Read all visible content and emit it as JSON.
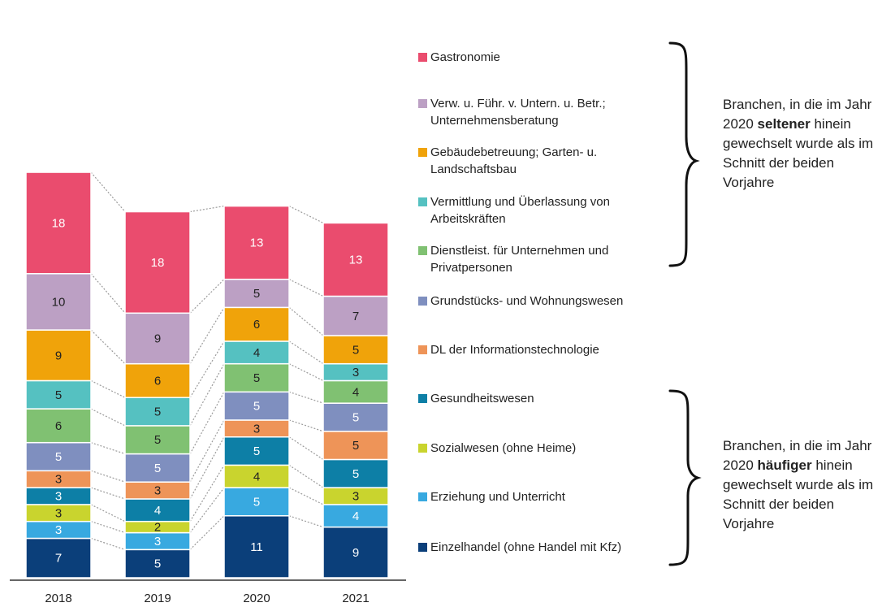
{
  "chart_data": {
    "type": "stacked-bar",
    "categories": [
      "2018",
      "2019",
      "2020",
      "2021"
    ],
    "ylim": [
      0,
      100
    ],
    "grid": false,
    "legend_position": "right",
    "series": [
      {
        "name": "Einzelhandel (ohne Handel mit Kfz)",
        "color": "#0b3f7a",
        "values": [
          7,
          5,
          11,
          9
        ]
      },
      {
        "name": "Erziehung und Unterricht",
        "color": "#38a9e0",
        "values": [
          3,
          3,
          5,
          4
        ]
      },
      {
        "name": "Sozialwesen (ohne Heime)",
        "color": "#c9d42e",
        "values": [
          3,
          2,
          4,
          3
        ]
      },
      {
        "name": "Gesundheitswesen",
        "color": "#0d7fa6",
        "values": [
          3,
          4,
          5,
          5
        ]
      },
      {
        "name": "DL der Informationstechnologie",
        "color": "#ee9458",
        "values": [
          3,
          3,
          3,
          5
        ]
      },
      {
        "name": "Grundstücks- und Wohnungswesen",
        "color": "#7f8fbf",
        "values": [
          5,
          5,
          5,
          5
        ]
      },
      {
        "name": "Dienstleist. für Unternehmen und\nPrivatpersonen",
        "color": "#80c172",
        "values": [
          6,
          5,
          5,
          4
        ]
      },
      {
        "name": "Vermittlung und Überlassung von\nArbeitskräften",
        "color": "#55c1c1",
        "values": [
          5,
          5,
          4,
          3
        ]
      },
      {
        "name": "Gebäudebetreuung; Garten- u.\nLandschaftsbau",
        "color": "#f0a30a",
        "values": [
          9,
          6,
          6,
          5
        ]
      },
      {
        "name": "Verw. u. Führ. v. Untern. u. Betr.;\nUnternehmensberatung",
        "color": "#bca0c4",
        "values": [
          10,
          9,
          5,
          7
        ]
      },
      {
        "name": "Gastronomie",
        "color": "#ea4c6e",
        "values": [
          18,
          18,
          13,
          13
        ]
      }
    ]
  },
  "annotations": {
    "top": {
      "text_before": "Branchen, in die im Jahr 2020 ",
      "bold": "seltener",
      "text_after": " hinein gewechselt wurde als im Schnitt der beiden Vorjahre"
    },
    "bottom": {
      "text_before": "Branchen, in die im Jahr 2020 ",
      "bold": "häufiger",
      "text_after": " hinein gewechselt wurde als im Schnitt der beiden Vorjahre"
    }
  }
}
